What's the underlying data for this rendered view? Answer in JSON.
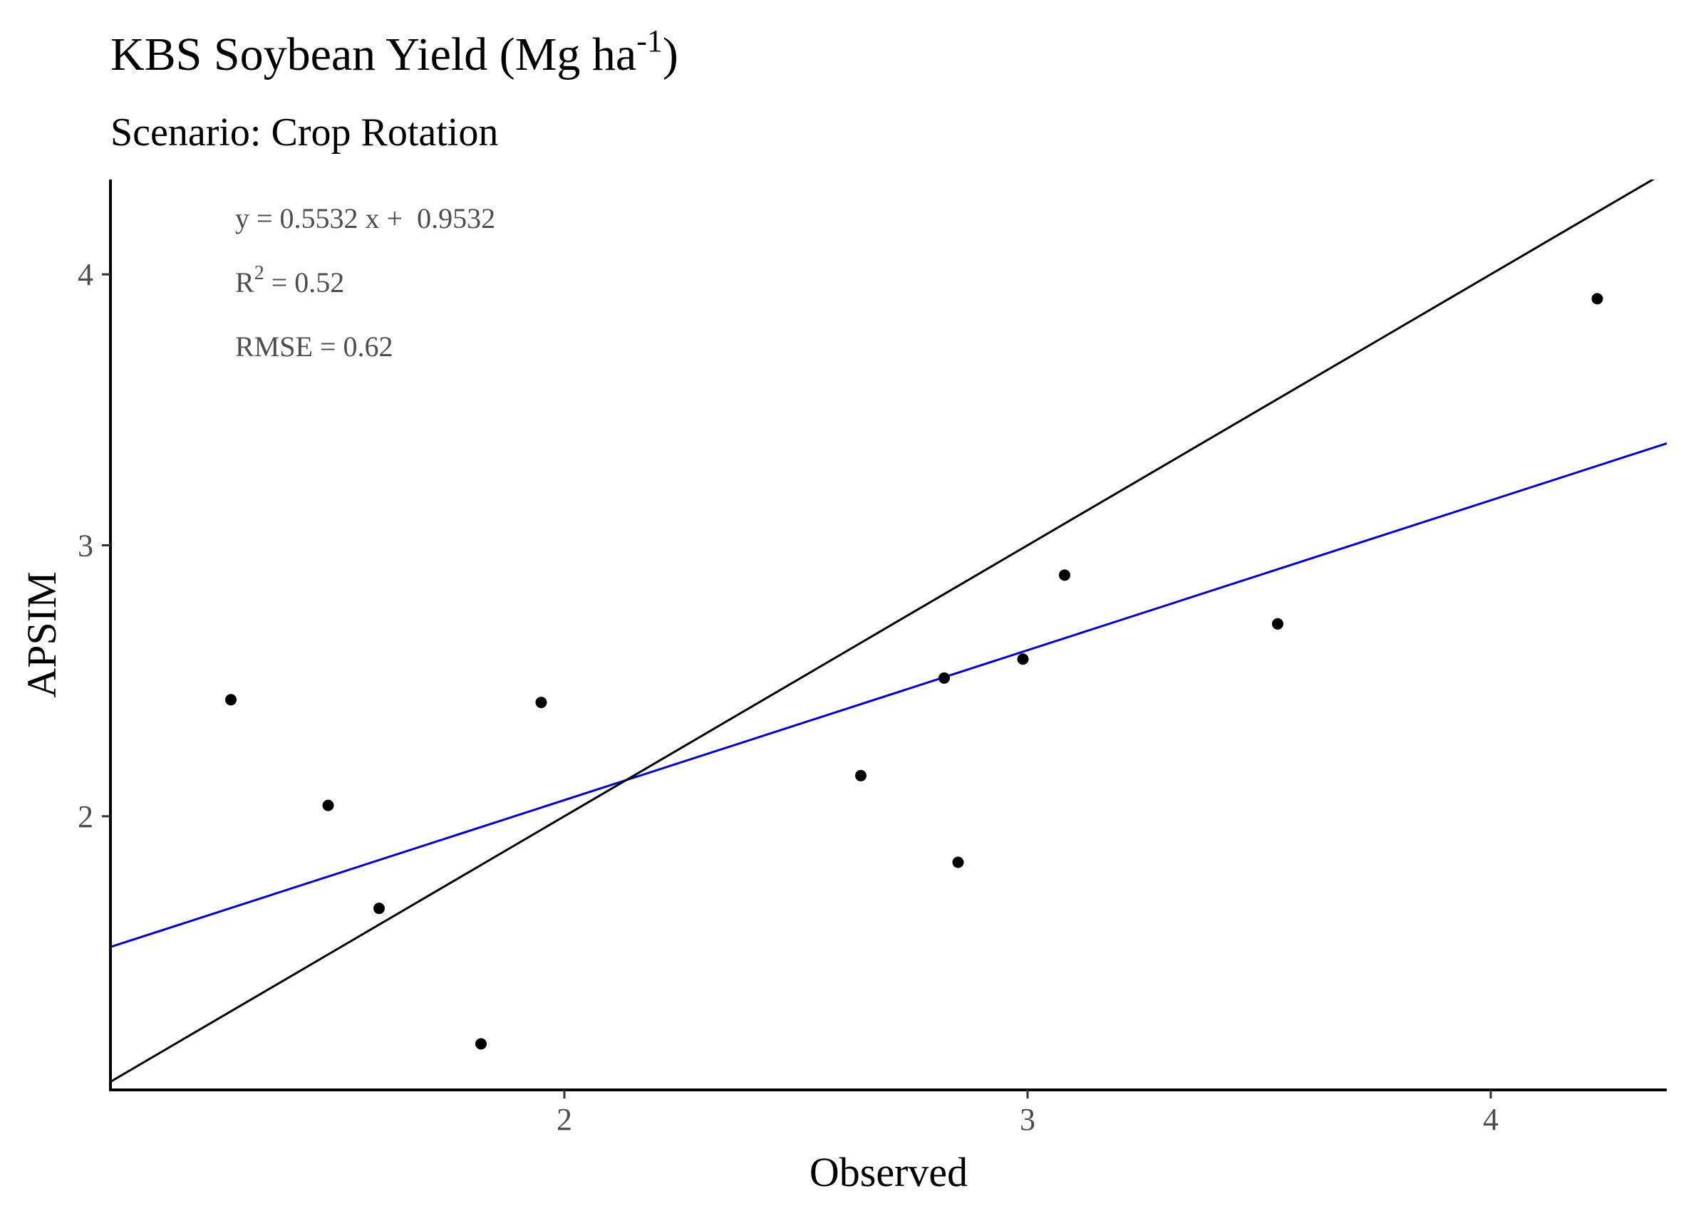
{
  "title": "KBS Soybean Yield (Mg ha-1)",
  "title_parts": {
    "main": "KBS Soybean Yield (Mg ha",
    "sup": "-1",
    "close": ")"
  },
  "subtitle": "Scenario: Crop Rotation",
  "annotations": {
    "equation": "y = 0.5532 x +  0.9532",
    "r2": {
      "label": "R",
      "sup": "2",
      "value": " = 0.52"
    },
    "rmse": "RMSE = 0.62"
  },
  "colors": {
    "points": "#000000",
    "regression_line": "#0000cc",
    "identity_line": "#000000",
    "axis": "#000000"
  },
  "chart_data": {
    "type": "scatter",
    "title": "KBS Soybean Yield (Mg ha-1)",
    "subtitle": "Scenario: Crop Rotation",
    "xlabel": "Observed",
    "ylabel": "APSIM",
    "xlim": [
      1.02,
      4.38
    ],
    "ylim": [
      0.99,
      4.35
    ],
    "x_ticks": [
      2,
      3,
      4
    ],
    "y_ticks": [
      2,
      3,
      4
    ],
    "x_tick_labels": [
      "2",
      "3",
      "4"
    ],
    "y_tick_labels": [
      "2",
      "3",
      "4"
    ],
    "grid": false,
    "points": [
      {
        "x": 1.28,
        "y": 2.43
      },
      {
        "x": 1.49,
        "y": 2.04
      },
      {
        "x": 1.6,
        "y": 1.66
      },
      {
        "x": 1.82,
        "y": 1.16
      },
      {
        "x": 1.95,
        "y": 2.42
      },
      {
        "x": 2.64,
        "y": 2.15
      },
      {
        "x": 2.82,
        "y": 2.51
      },
      {
        "x": 2.85,
        "y": 1.83
      },
      {
        "x": 2.99,
        "y": 2.58
      },
      {
        "x": 3.08,
        "y": 2.89
      },
      {
        "x": 3.54,
        "y": 2.71
      },
      {
        "x": 4.23,
        "y": 3.91
      }
    ],
    "lines": [
      {
        "kind": "regression",
        "slope": 0.5532,
        "intercept": 0.9532
      },
      {
        "kind": "identity",
        "slope": 1,
        "intercept": 0
      }
    ]
  }
}
